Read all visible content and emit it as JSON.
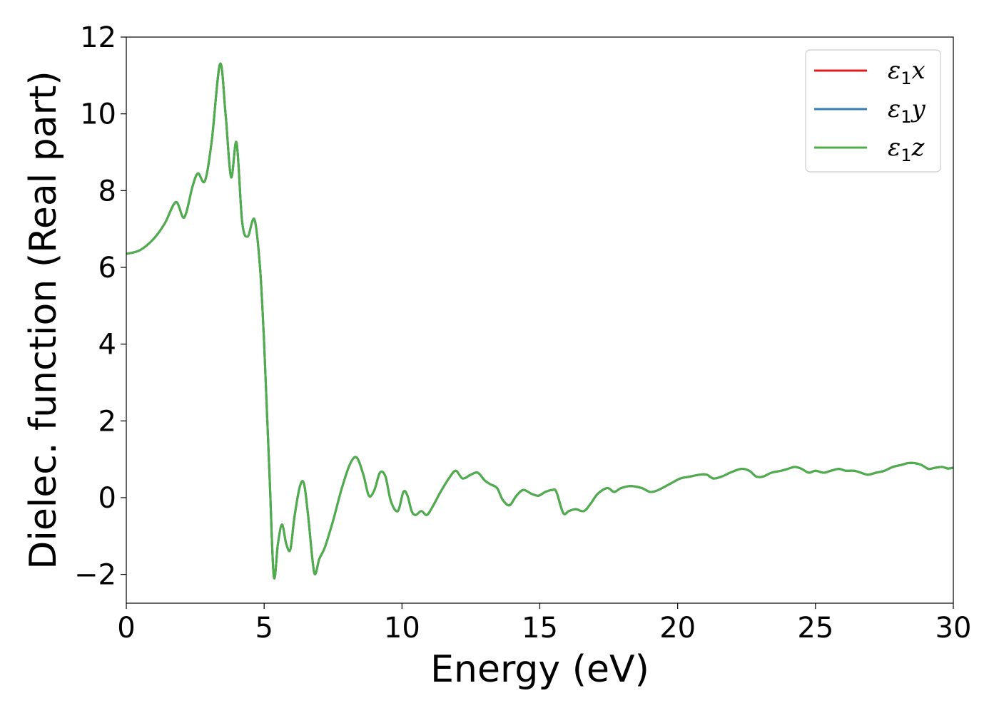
{
  "chart_data": {
    "type": "line",
    "xlabel": "Energy (eV)",
    "ylabel": "Dielec. function (Real part)",
    "xlim": [
      0,
      30
    ],
    "ylim": [
      -2.75,
      12
    ],
    "xticks": [
      0,
      5,
      10,
      15,
      20,
      25,
      30
    ],
    "yticks": [
      -2,
      0,
      2,
      4,
      6,
      8,
      10,
      12
    ],
    "xtick_labels": [
      "0",
      "5",
      "10",
      "15",
      "20",
      "25",
      "30"
    ],
    "ytick_labels": [
      "−2",
      "0",
      "2",
      "4",
      "6",
      "8",
      "10",
      "12"
    ],
    "grid": false,
    "legend_position": "top-right",
    "x": [
      0,
      0.5,
      1.0,
      1.4,
      1.8,
      2.1,
      2.4,
      2.6,
      2.85,
      3.1,
      3.4,
      3.6,
      3.8,
      4.0,
      4.2,
      4.4,
      4.65,
      4.85,
      5.0,
      5.2,
      5.35,
      5.5,
      5.65,
      5.8,
      5.95,
      6.1,
      6.3,
      6.45,
      6.6,
      6.75,
      6.85,
      7.0,
      7.2,
      7.5,
      7.8,
      8.1,
      8.35,
      8.6,
      8.8,
      9.0,
      9.2,
      9.4,
      9.6,
      9.85,
      10.05,
      10.2,
      10.35,
      10.5,
      10.7,
      10.9,
      11.1,
      11.4,
      11.7,
      11.95,
      12.2,
      12.5,
      12.75,
      13.0,
      13.2,
      13.45,
      13.65,
      13.9,
      14.15,
      14.4,
      14.7,
      14.95,
      15.2,
      15.45,
      15.6,
      15.85,
      16.05,
      16.3,
      16.6,
      16.85,
      17.1,
      17.45,
      17.7,
      17.95,
      18.3,
      18.7,
      19.0,
      19.3,
      19.7,
      20.1,
      20.45,
      20.8,
      21.05,
      21.3,
      21.6,
      21.9,
      22.3,
      22.6,
      22.85,
      23.1,
      23.4,
      23.75,
      24.0,
      24.25,
      24.5,
      24.75,
      25.0,
      25.3,
      25.55,
      25.85,
      26.1,
      26.4,
      26.65,
      26.9,
      27.2,
      27.5,
      27.8,
      28.1,
      28.35,
      28.6,
      28.85,
      29.1,
      29.35,
      29.6,
      29.8,
      30.0
    ],
    "series": [
      {
        "name": "ε₁x",
        "color": "#e41a1c",
        "values": [
          6.35,
          6.45,
          6.75,
          7.15,
          7.7,
          7.3,
          8.1,
          8.45,
          8.25,
          9.3,
          11.3,
          10.0,
          8.35,
          9.25,
          7.2,
          6.8,
          7.25,
          6.0,
          4.0,
          0.5,
          -2.05,
          -1.2,
          -0.7,
          -1.2,
          -1.35,
          -0.5,
          0.3,
          0.35,
          -0.5,
          -1.6,
          -2.0,
          -1.6,
          -1.3,
          -0.6,
          0.2,
          0.85,
          1.05,
          0.6,
          0.05,
          0.2,
          0.65,
          0.55,
          -0.1,
          -0.35,
          0.15,
          0.05,
          -0.35,
          -0.45,
          -0.35,
          -0.45,
          -0.25,
          0.15,
          0.5,
          0.7,
          0.5,
          0.6,
          0.65,
          0.45,
          0.35,
          0.25,
          -0.05,
          -0.2,
          0.05,
          0.2,
          0.1,
          0.05,
          0.15,
          0.2,
          0.15,
          -0.4,
          -0.35,
          -0.3,
          -0.35,
          -0.15,
          0.1,
          0.25,
          0.15,
          0.25,
          0.3,
          0.25,
          0.15,
          0.2,
          0.35,
          0.5,
          0.55,
          0.6,
          0.6,
          0.5,
          0.55,
          0.65,
          0.75,
          0.7,
          0.55,
          0.55,
          0.65,
          0.7,
          0.75,
          0.8,
          0.75,
          0.65,
          0.7,
          0.65,
          0.7,
          0.75,
          0.7,
          0.7,
          0.65,
          0.6,
          0.65,
          0.7,
          0.8,
          0.85,
          0.9,
          0.9,
          0.85,
          0.75,
          0.78,
          0.8,
          0.76,
          0.78
        ]
      },
      {
        "name": "ε₁y",
        "color": "#377eb8",
        "values": [
          6.35,
          6.45,
          6.75,
          7.15,
          7.7,
          7.3,
          8.1,
          8.45,
          8.25,
          9.3,
          11.3,
          10.0,
          8.35,
          9.25,
          7.2,
          6.8,
          7.25,
          6.0,
          4.0,
          0.5,
          -2.05,
          -1.2,
          -0.7,
          -1.2,
          -1.35,
          -0.5,
          0.3,
          0.35,
          -0.5,
          -1.6,
          -2.0,
          -1.6,
          -1.3,
          -0.6,
          0.2,
          0.85,
          1.05,
          0.6,
          0.05,
          0.2,
          0.65,
          0.55,
          -0.1,
          -0.35,
          0.15,
          0.05,
          -0.35,
          -0.45,
          -0.35,
          -0.45,
          -0.25,
          0.15,
          0.5,
          0.7,
          0.5,
          0.6,
          0.65,
          0.45,
          0.35,
          0.25,
          -0.05,
          -0.2,
          0.05,
          0.2,
          0.1,
          0.05,
          0.15,
          0.2,
          0.15,
          -0.4,
          -0.35,
          -0.3,
          -0.35,
          -0.15,
          0.1,
          0.25,
          0.15,
          0.25,
          0.3,
          0.25,
          0.15,
          0.2,
          0.35,
          0.5,
          0.55,
          0.6,
          0.6,
          0.5,
          0.55,
          0.65,
          0.75,
          0.7,
          0.55,
          0.55,
          0.65,
          0.7,
          0.75,
          0.8,
          0.75,
          0.65,
          0.7,
          0.65,
          0.7,
          0.75,
          0.7,
          0.7,
          0.65,
          0.6,
          0.65,
          0.7,
          0.8,
          0.85,
          0.9,
          0.9,
          0.85,
          0.75,
          0.78,
          0.8,
          0.76,
          0.78
        ]
      },
      {
        "name": "ε₁z",
        "color": "#4daf4a",
        "values": [
          6.35,
          6.45,
          6.75,
          7.15,
          7.7,
          7.3,
          8.1,
          8.45,
          8.25,
          9.3,
          11.3,
          10.0,
          8.35,
          9.25,
          7.2,
          6.8,
          7.25,
          6.0,
          4.0,
          0.5,
          -2.05,
          -1.2,
          -0.7,
          -1.2,
          -1.35,
          -0.5,
          0.3,
          0.35,
          -0.5,
          -1.6,
          -2.0,
          -1.6,
          -1.3,
          -0.6,
          0.2,
          0.85,
          1.05,
          0.6,
          0.05,
          0.2,
          0.65,
          0.55,
          -0.1,
          -0.35,
          0.15,
          0.05,
          -0.35,
          -0.45,
          -0.35,
          -0.45,
          -0.25,
          0.15,
          0.5,
          0.7,
          0.5,
          0.6,
          0.65,
          0.45,
          0.35,
          0.25,
          -0.05,
          -0.2,
          0.05,
          0.2,
          0.1,
          0.05,
          0.15,
          0.2,
          0.15,
          -0.4,
          -0.35,
          -0.3,
          -0.35,
          -0.15,
          0.1,
          0.25,
          0.15,
          0.25,
          0.3,
          0.25,
          0.15,
          0.2,
          0.35,
          0.5,
          0.55,
          0.6,
          0.6,
          0.5,
          0.55,
          0.65,
          0.75,
          0.7,
          0.55,
          0.55,
          0.65,
          0.7,
          0.75,
          0.8,
          0.75,
          0.65,
          0.7,
          0.65,
          0.7,
          0.75,
          0.7,
          0.7,
          0.65,
          0.6,
          0.65,
          0.7,
          0.8,
          0.85,
          0.9,
          0.9,
          0.85,
          0.75,
          0.78,
          0.8,
          0.76,
          0.78
        ]
      }
    ],
    "legend": [
      {
        "symbol": "ε",
        "subscript": "1",
        "axis": "x"
      },
      {
        "symbol": "ε",
        "subscript": "1",
        "axis": "y"
      },
      {
        "symbol": "ε",
        "subscript": "1",
        "axis": "z"
      }
    ]
  }
}
